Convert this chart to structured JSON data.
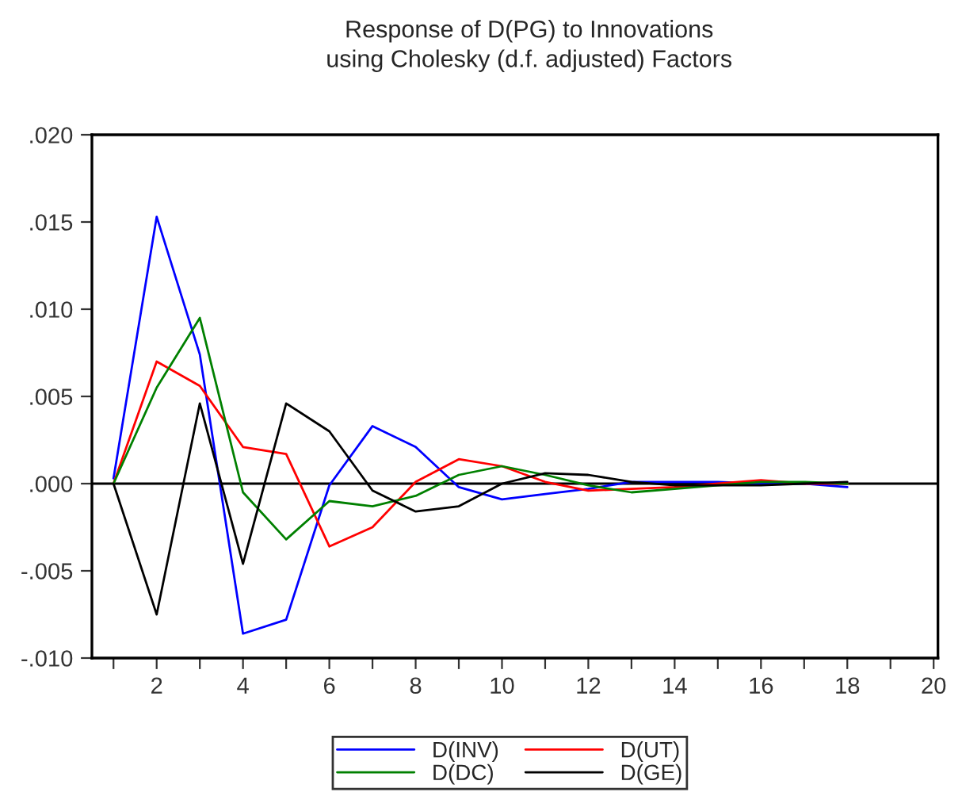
{
  "chart_data": {
    "type": "line",
    "title": "Response of D(PG) to Innovations\nusing Cholesky (d.f. adjusted) Factors",
    "x": [
      1,
      2,
      3,
      4,
      5,
      6,
      7,
      8,
      9,
      10,
      11,
      12,
      13,
      14,
      15,
      16,
      17,
      18
    ],
    "series": [
      {
        "name": "D(INV)",
        "color": "#0000ff",
        "values": [
          0.0003,
          0.0153,
          0.0074,
          -0.0086,
          -0.0078,
          -0.0001,
          0.0033,
          0.0021,
          -0.0002,
          -0.0009,
          -0.0006,
          -0.0003,
          0.0001,
          0.0001,
          0.0001,
          0.0,
          0.0,
          -0.0002
        ]
      },
      {
        "name": "D(UT)",
        "color": "#ff0000",
        "values": [
          0.0,
          0.007,
          0.0056,
          0.0021,
          0.0017,
          -0.0036,
          -0.0025,
          0.0001,
          0.0014,
          0.001,
          0.0001,
          -0.0004,
          -0.0003,
          -0.0002,
          0.0,
          0.0002,
          0.0,
          0.0
        ]
      },
      {
        "name": "D(DC)",
        "color": "#008000",
        "values": [
          0.0,
          0.0055,
          0.0095,
          -0.0005,
          -0.0032,
          -0.001,
          -0.0013,
          -0.0007,
          0.0005,
          0.001,
          0.0005,
          -0.0001,
          -0.0005,
          -0.0003,
          -0.0001,
          0.0001,
          0.0001,
          0.0
        ]
      },
      {
        "name": "D(GE)",
        "color": "#000000",
        "values": [
          0.0,
          -0.0075,
          0.0046,
          -0.0046,
          0.0046,
          0.003,
          -0.0004,
          -0.0016,
          -0.0013,
          0.0,
          0.0006,
          0.0005,
          0.0001,
          -0.0001,
          -0.0001,
          -0.0001,
          0.0,
          0.0001
        ]
      }
    ],
    "xlim": [
      0.5,
      20.1
    ],
    "xticks": [
      {
        "value": 1,
        "label": null
      },
      2,
      {
        "value": 3,
        "label": null
      },
      4,
      {
        "value": 5,
        "label": null
      },
      6,
      {
        "value": 7,
        "label": null
      },
      8,
      {
        "value": 9,
        "label": null
      },
      10,
      {
        "value": 11,
        "label": null
      },
      12,
      {
        "value": 13,
        "label": null
      },
      14,
      {
        "value": 15,
        "label": null
      },
      16,
      {
        "value": 17,
        "label": null
      },
      18,
      {
        "value": 19,
        "label": null
      },
      20
    ],
    "ylim": [
      -0.01,
      0.02
    ],
    "yticks": [
      {
        "value": -0.01,
        "label": "-.010"
      },
      {
        "value": -0.005,
        "label": "-.005"
      },
      {
        "value": 0,
        "label": ".000"
      },
      {
        "value": 0.005,
        "label": ".005"
      },
      {
        "value": 0.01,
        "label": ".010"
      },
      {
        "value": 0.015,
        "label": ".015"
      },
      {
        "value": 0.02,
        "label": ".020"
      }
    ],
    "ref_lines": [
      {
        "axis": "y",
        "value": 0,
        "color": "#000000"
      }
    ],
    "grid": false,
    "legend": "bottom",
    "marker": "none",
    "line_style": "solid"
  }
}
